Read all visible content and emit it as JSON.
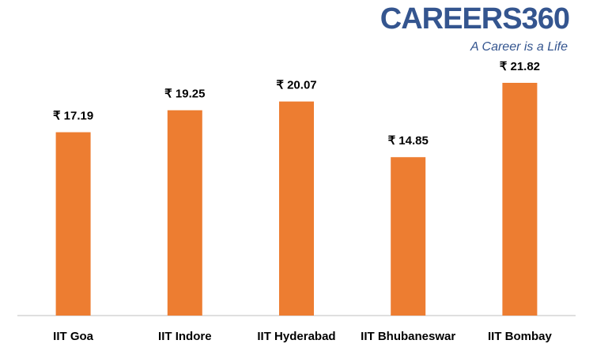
{
  "chart_data": {
    "type": "bar",
    "brand": "CAREERS360",
    "tagline": "A Career is a Life",
    "categories": [
      "IIT Goa",
      "IIT Indore",
      "IIT Hyderabad",
      "IIT Bhubaneswar",
      "IIT Bombay"
    ],
    "values": [
      17.19,
      19.25,
      20.07,
      14.85,
      21.82
    ],
    "value_labels": [
      "₹ 17.19",
      "₹ 19.25",
      "₹ 20.07",
      "₹ 14.85",
      "₹ 21.82"
    ],
    "color": "#ed7d31"
  }
}
